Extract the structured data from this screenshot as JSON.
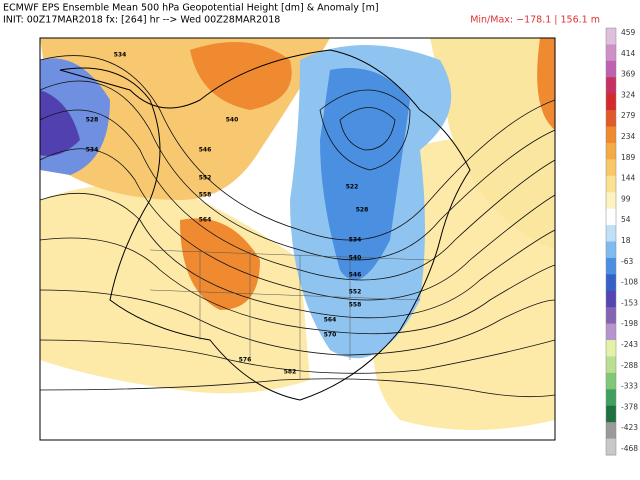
{
  "header": {
    "title": "ECMWF EPS Ensemble Mean 500 hPa Geopotential Height [dm] & Anomaly [m]",
    "init": "INIT: 00Z17MAR2018  fx: [264] hr --> Wed 00Z28MAR2018",
    "minmax": "Min/Max: −178.1 | 156.1 m"
  },
  "colorbar": {
    "labels": [
      "459",
      "414",
      "369",
      "324",
      "279",
      "234",
      "189",
      "144",
      "99",
      "54",
      "18",
      "-63",
      "-108",
      "-153",
      "-198",
      "-243",
      "-288",
      "-333",
      "-378",
      "-423",
      "-468"
    ]
  },
  "contour_labels": [
    "534",
    "528",
    "534",
    "540",
    "546",
    "552",
    "558",
    "564",
    "522",
    "528",
    "534",
    "540",
    "546",
    "552",
    "558",
    "564",
    "570",
    "576",
    "582"
  ]
}
